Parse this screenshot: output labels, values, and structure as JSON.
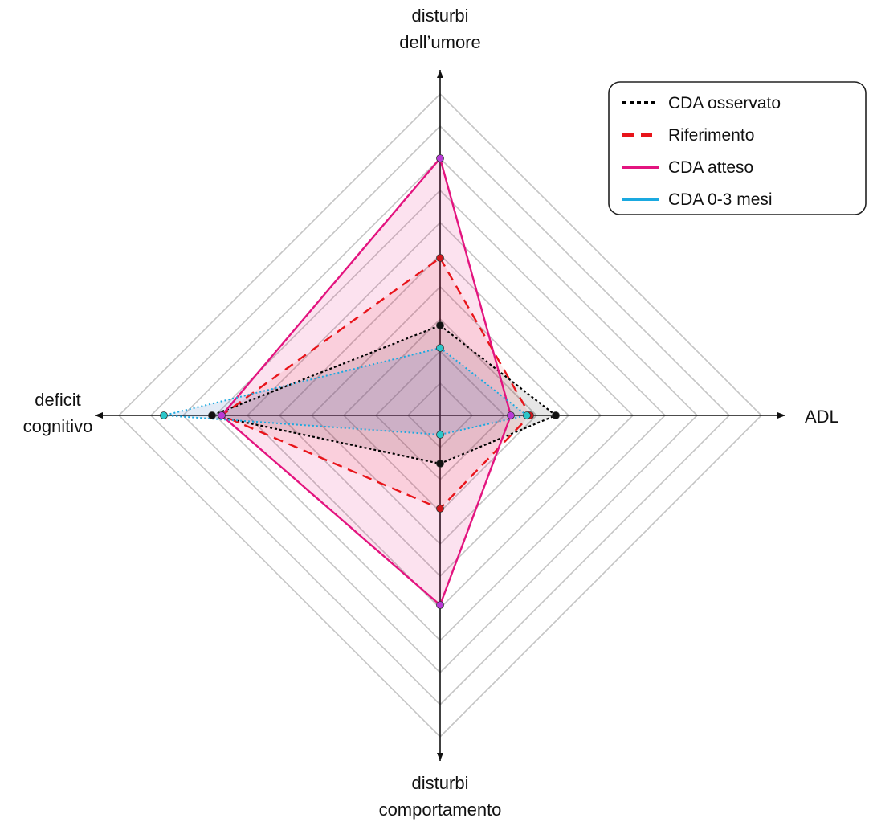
{
  "chart_data": {
    "type": "radar",
    "axes": [
      {
        "key": "top",
        "label_lines": [
          "disturbi",
          "dell’umore"
        ]
      },
      {
        "key": "right",
        "label_lines": [
          "ADL"
        ]
      },
      {
        "key": "bottom",
        "label_lines": [
          "disturbi",
          "comportamento"
        ]
      },
      {
        "key": "left",
        "label_lines": [
          "deficit",
          "cognitivo"
        ]
      }
    ],
    "range": [
      0,
      10
    ],
    "grid_levels": 10,
    "grid": true,
    "legend_position": "top-right",
    "series": [
      {
        "name": "CDA osservato",
        "style": "dotted",
        "color": "#000000",
        "marker_color": "#111111",
        "fill": "rgba(60,60,60,0.13)",
        "values": {
          "top": 2.8,
          "right": 3.6,
          "bottom": 1.5,
          "left": 7.1
        }
      },
      {
        "name": "Riferimento",
        "style": "dashed",
        "color": "#e8141a",
        "marker_color": "#d0151b",
        "fill": "rgba(232,20,26,0.09)",
        "values": {
          "top": 4.9,
          "right": 2.8,
          "bottom": 2.9,
          "left": 6.8
        }
      },
      {
        "name": "CDA atteso",
        "style": "solid",
        "color": "#e3147f",
        "marker_color": "#b93ad6",
        "fill": "rgba(227,20,127,0.12)",
        "values": {
          "top": 8.0,
          "right": 2.2,
          "bottom": 5.9,
          "left": 6.8
        }
      },
      {
        "name": "CDA 0-3 mesi",
        "style": "dotted-fine",
        "color": "#1aa9e0",
        "marker_color": "#2cc6c9",
        "fill": "rgba(60,110,190,0.14)",
        "values": {
          "top": 2.1,
          "right": 2.7,
          "bottom": 0.6,
          "left": 8.6
        }
      }
    ]
  }
}
